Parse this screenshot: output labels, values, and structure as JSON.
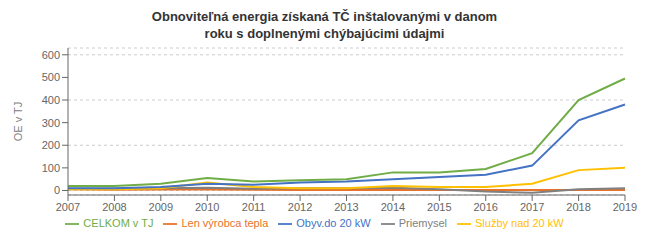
{
  "chart_data": {
    "type": "line",
    "title": "Obnoviteľná energia získaná TČ inštalovanými v danom\nroku s doplnenými chýbajúcimi údajmi",
    "ylabel": "OE v TJ",
    "categories": [
      "2007",
      "2008",
      "2009",
      "2010",
      "2011",
      "2012",
      "2013",
      "2014",
      "2015",
      "2016",
      "2017",
      "2018",
      "2019"
    ],
    "series": [
      {
        "name": "Len výrobca tepla",
        "color": "#E8722A",
        "values": [
          5,
          3,
          4,
          4,
          3,
          2,
          2,
          2,
          2,
          2,
          2,
          2,
          2
        ]
      },
      {
        "name": "Priemysel",
        "color": "#808080",
        "values": [
          8,
          8,
          10,
          12,
          8,
          10,
          10,
          12,
          5,
          -5,
          -10,
          5,
          10
        ]
      },
      {
        "name": "Služby nad 20 kW",
        "color": "#FFC000",
        "values": [
          5,
          5,
          10,
          35,
          15,
          10,
          10,
          20,
          15,
          15,
          30,
          90,
          100
        ]
      },
      {
        "name": "Obyv.do 20 kW",
        "color": "#4472C4",
        "values": [
          10,
          10,
          15,
          30,
          25,
          35,
          40,
          50,
          60,
          70,
          110,
          310,
          380
        ]
      },
      {
        "name": "CELKOM v  TJ",
        "color": "#70AD47",
        "values": [
          20,
          20,
          30,
          55,
          40,
          45,
          50,
          80,
          80,
          95,
          165,
          400,
          495
        ]
      }
    ],
    "ylim": [
      -20,
      630
    ],
    "yticks": [
      0,
      100,
      200,
      300,
      400,
      500,
      600
    ],
    "grid": true,
    "legend": "bottom"
  }
}
